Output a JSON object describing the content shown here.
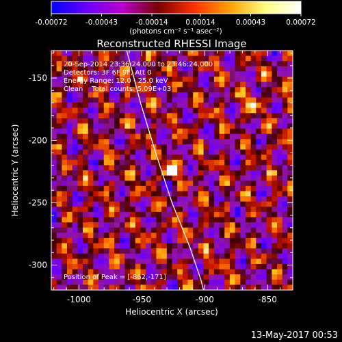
{
  "colorbar": {
    "tick_labels": [
      "-0.00072",
      "-0.00043",
      "-0.00014",
      "0.00014",
      "0.00043",
      "0.00072"
    ],
    "tick_values": [
      -0.00072,
      -0.00043,
      -0.00014,
      0.00014,
      0.00043,
      0.00072
    ],
    "range": [
      -0.00072,
      0.00072
    ],
    "units_label": "(photons cm⁻² s⁻¹ asec⁻²)",
    "colors": [
      "#0000ff",
      "#6a00ff",
      "#b800c8",
      "#7a0000",
      "#ff3000",
      "#ffa000",
      "#ffff80",
      "#ffffff"
    ]
  },
  "chart_data": {
    "type": "heatmap",
    "title": "Reconstructed RHESSI Image",
    "xlabel": "Heliocentric X (arcsec)",
    "ylabel": "Heliocentric Y (arcsec)",
    "xlim": [
      -1022,
      -830
    ],
    "ylim": [
      -320,
      -128
    ],
    "x_ticks": [
      -1000,
      -950,
      -900,
      -850
    ],
    "x_tick_labels": [
      "-1000",
      "-950",
      "-900",
      "-850"
    ],
    "y_ticks": [
      -150,
      -200,
      -250,
      -300
    ],
    "y_tick_labels": [
      "-150",
      "-200",
      "-250",
      "-300"
    ],
    "peak": {
      "x": -862,
      "y": -171
    },
    "bright_source": {
      "x": -927,
      "y": -224
    },
    "limb_curve": [
      [
        -962,
        -128
      ],
      [
        -951,
        -170
      ],
      [
        -939,
        -210
      ],
      [
        -926,
        -250
      ],
      [
        -912,
        -285
      ],
      [
        -903,
        -312
      ],
      [
        -901,
        -320
      ]
    ]
  },
  "annotations": {
    "time_range": "20-Sep-2014 23:36:24.000 to 23:46:24.000",
    "detectors": "Detectors: 3F 6F 9F, Att 0",
    "energy": "Energy Range: 12.0 - 25.0 keV",
    "method": "Clean    Total counts: 5.09E+03",
    "peak_label": "Position of Peak = [-862,-171]"
  },
  "footer": {
    "timestamp": "13-May-2017 00:53"
  }
}
